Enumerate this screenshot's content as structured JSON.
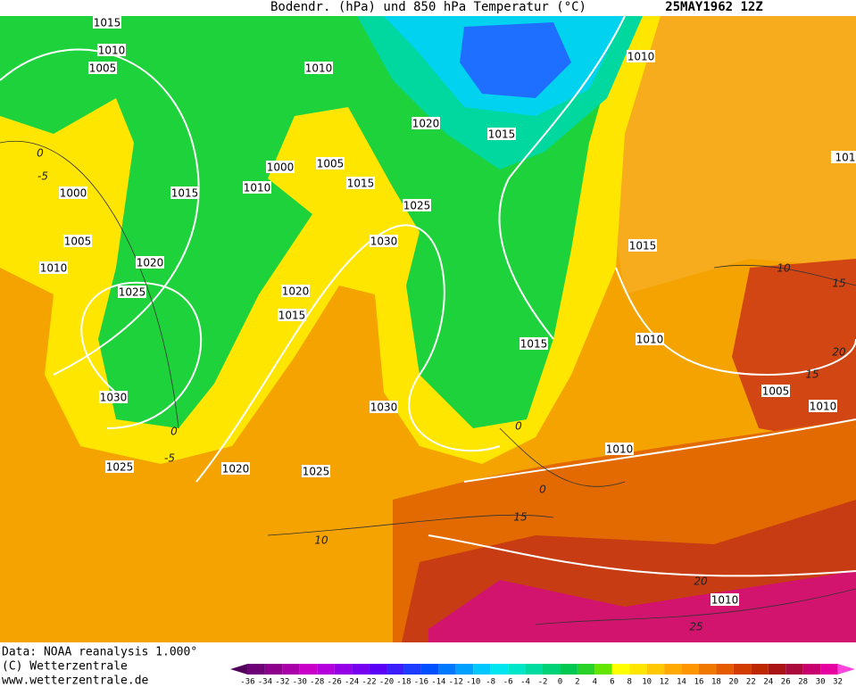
{
  "header": {
    "title": "Bodendr. (hPa) und 850 hPa Temperatur (°C)",
    "date": "25MAY1962 12Z"
  },
  "isobar_labels": [
    "1015",
    "1010",
    "1005",
    "1010",
    "1010",
    "1020",
    "1015",
    "1000",
    "1005",
    "1010",
    "1015",
    "1015",
    "1000",
    "1025",
    "1030",
    "1005",
    "1010",
    "1020",
    "1015",
    "1025",
    "1020",
    "1015",
    "1015",
    "1010",
    "1030",
    "1005",
    "1010",
    "1030",
    "1010",
    "1025",
    "1020",
    "1025",
    "1010",
    "101"
  ],
  "temperature_labels": [
    "0",
    "-5",
    "0",
    "-5",
    "0",
    "0",
    "15",
    "10",
    "10",
    "15",
    "20",
    "15",
    "20",
    "25"
  ],
  "footer": {
    "data": "Data: NOAA reanalysis 1.000°",
    "copyright": "(C) Wetterzentrale",
    "url": "www.wetterzentrale.de"
  },
  "colorbar": {
    "labels": [
      -36,
      -34,
      -32,
      -30,
      -28,
      -26,
      -24,
      -22,
      -20,
      -18,
      -16,
      -14,
      -12,
      -10,
      -8,
      -6,
      -4,
      -2,
      0,
      2,
      4,
      6,
      8,
      10,
      12,
      14,
      16,
      18,
      20,
      22,
      24,
      26,
      28,
      30,
      32
    ],
    "colors": [
      "#50005a",
      "#6e0078",
      "#8c008c",
      "#aa00aa",
      "#c800c8",
      "#b400dc",
      "#9600e6",
      "#7800f0",
      "#5a00f5",
      "#3c1efa",
      "#1e3cff",
      "#0050ff",
      "#0078ff",
      "#00a0ff",
      "#00c8ff",
      "#00e6f0",
      "#00e6c8",
      "#00dca0",
      "#00d278",
      "#00c850",
      "#28d228",
      "#64e600",
      "#ffff00",
      "#ffe600",
      "#ffc800",
      "#ffaa00",
      "#ff9600",
      "#f07800",
      "#e65a00",
      "#d23c00",
      "#be2800",
      "#aa1414",
      "#aa0a3c",
      "#c8006e",
      "#e600a0",
      "#ff46dc"
    ]
  }
}
